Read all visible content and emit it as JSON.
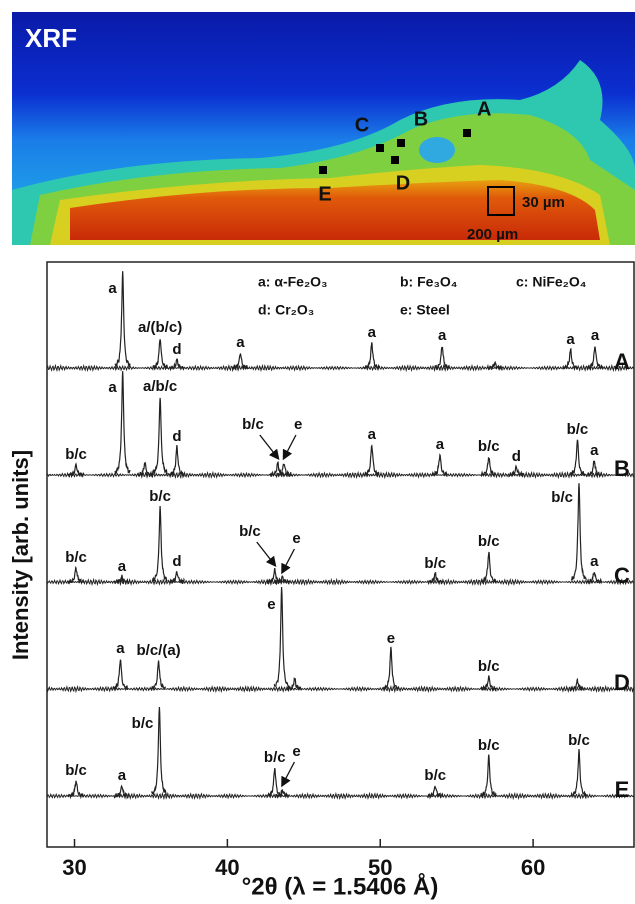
{
  "xrf_map": {
    "title": "XRF",
    "points": [
      "A",
      "B",
      "C",
      "D",
      "E"
    ],
    "scale_small": "30 µm",
    "scale_large": "200 µm"
  },
  "chart_data": {
    "type": "line",
    "xlabel": "°2θ (λ = 1.5406 Å)",
    "ylabel": "Intensity [arb. units]",
    "xlim": [
      28.2,
      66.6
    ],
    "xticks": [
      30,
      40,
      50,
      60
    ],
    "legend": [
      "a: α-Fe₂O₃",
      "b: Fe₃O₄",
      "c: NiFe₂O₄",
      "d: Cr₂O₃",
      "e: Steel"
    ],
    "series": [
      {
        "name": "A",
        "color": "#222222",
        "peaks": [
          {
            "x": 33.15,
            "intensity": 95,
            "label": "a"
          },
          {
            "x": 35.6,
            "intensity": 30,
            "label": "a/(b/c)"
          },
          {
            "x": 36.7,
            "intensity": 8,
            "label": "d"
          },
          {
            "x": 40.85,
            "intensity": 15,
            "label": "a"
          },
          {
            "x": 49.45,
            "intensity": 25,
            "label": "a"
          },
          {
            "x": 54.05,
            "intensity": 22,
            "label": "a"
          },
          {
            "x": 57.5,
            "intensity": 5,
            "label": null
          },
          {
            "x": 62.45,
            "intensity": 18,
            "label": "a"
          },
          {
            "x": 64.05,
            "intensity": 22,
            "label": "a"
          }
        ]
      },
      {
        "name": "B",
        "color": "#222222",
        "peaks": [
          {
            "x": 30.1,
            "intensity": 10,
            "label": "b/c"
          },
          {
            "x": 33.15,
            "intensity": 103,
            "label": "a"
          },
          {
            "x": 34.6,
            "intensity": 12,
            "label": null
          },
          {
            "x": 35.6,
            "intensity": 78,
            "label": "a/b/c"
          },
          {
            "x": 36.7,
            "intensity": 28,
            "label": "d"
          },
          {
            "x": 43.3,
            "intensity": 12,
            "label": "b/c",
            "arrow": true
          },
          {
            "x": 43.7,
            "intensity": 12,
            "label": "e",
            "arrow": true
          },
          {
            "x": 49.45,
            "intensity": 30,
            "label": "a"
          },
          {
            "x": 53.9,
            "intensity": 20,
            "label": "a"
          },
          {
            "x": 57.1,
            "intensity": 18,
            "label": "b/c"
          },
          {
            "x": 58.9,
            "intensity": 8,
            "label": "d"
          },
          {
            "x": 62.9,
            "intensity": 35,
            "label": "b/c"
          },
          {
            "x": 64.0,
            "intensity": 14,
            "label": "a"
          }
        ]
      },
      {
        "name": "C",
        "color": "#222222",
        "peaks": [
          {
            "x": 30.1,
            "intensity": 14,
            "label": "b/c"
          },
          {
            "x": 33.1,
            "intensity": 5,
            "label": "a"
          },
          {
            "x": 35.6,
            "intensity": 75,
            "label": "b/c"
          },
          {
            "x": 36.7,
            "intensity": 10,
            "label": "d"
          },
          {
            "x": 43.1,
            "intensity": 12,
            "label": "b/c",
            "arrow": true
          },
          {
            "x": 43.6,
            "intensity": 5,
            "label": "e",
            "arrow": true
          },
          {
            "x": 53.6,
            "intensity": 8,
            "label": "b/c"
          },
          {
            "x": 57.1,
            "intensity": 30,
            "label": "b/c"
          },
          {
            "x": 63.0,
            "intensity": 100,
            "label": "b/c"
          },
          {
            "x": 64.0,
            "intensity": 10,
            "label": "a"
          }
        ]
      },
      {
        "name": "D",
        "color": "#222222",
        "peaks": [
          {
            "x": 33.0,
            "intensity": 30,
            "label": "a"
          },
          {
            "x": 35.5,
            "intensity": 28,
            "label": "b/c/(a)"
          },
          {
            "x": 43.55,
            "intensity": 100,
            "label": "e"
          },
          {
            "x": 44.4,
            "intensity": 10,
            "label": null
          },
          {
            "x": 50.7,
            "intensity": 40,
            "label": "e"
          },
          {
            "x": 57.1,
            "intensity": 12,
            "label": "b/c"
          },
          {
            "x": 62.9,
            "intensity": 8,
            "label": null
          }
        ]
      },
      {
        "name": "E",
        "color": "#222222",
        "peaks": [
          {
            "x": 30.1,
            "intensity": 15,
            "label": "b/c"
          },
          {
            "x": 33.1,
            "intensity": 10,
            "label": "a"
          },
          {
            "x": 35.55,
            "intensity": 88,
            "label": "b/c"
          },
          {
            "x": 43.1,
            "intensity": 28,
            "label": "b/c"
          },
          {
            "x": 43.6,
            "intensity": 6,
            "label": "e",
            "arrow": true
          },
          {
            "x": 53.6,
            "intensity": 10,
            "label": "b/c"
          },
          {
            "x": 57.1,
            "intensity": 40,
            "label": "b/c"
          },
          {
            "x": 63.0,
            "intensity": 45,
            "label": "b/c"
          }
        ]
      }
    ]
  }
}
